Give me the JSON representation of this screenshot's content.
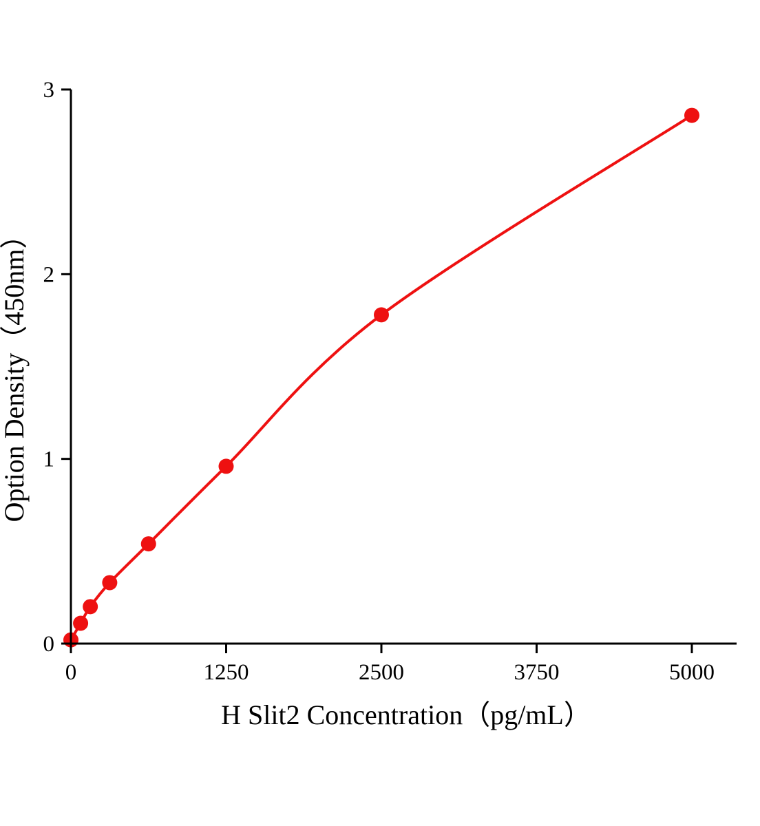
{
  "chart_data": {
    "type": "scatter",
    "title": "",
    "xlabel": "H Slit2 Concentration（pg/mL）",
    "ylabel": "Option Density（450nm）",
    "x": [
      0,
      78.1,
      156.2,
      312.5,
      625,
      1250,
      2500,
      5000
    ],
    "y": [
      0.02,
      0.11,
      0.2,
      0.33,
      0.54,
      0.96,
      1.78,
      2.86
    ],
    "x_ticks": [
      0,
      1250,
      2500,
      3750,
      5000
    ],
    "y_ticks": [
      0,
      1,
      2,
      3
    ],
    "xlim": [
      0,
      5350
    ],
    "ylim": [
      0,
      3
    ],
    "grid": false,
    "legend": null,
    "curve": "smooth saturating fit through all points",
    "line_color": "#ee1111",
    "point_color": "#ee1111",
    "marker_radius_px": 11,
    "axis_color": "#000000"
  }
}
